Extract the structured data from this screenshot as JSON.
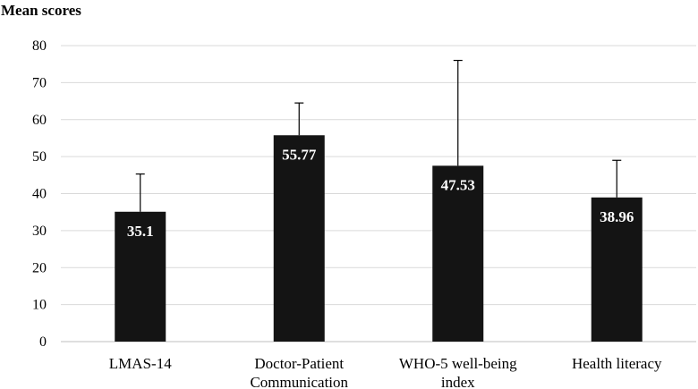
{
  "chart_data": {
    "type": "bar",
    "title": "",
    "ylabel": "Mean scores",
    "xlabel": "",
    "categories": [
      [
        "LMAS-14"
      ],
      [
        "Doctor-Patient",
        "Communication"
      ],
      [
        "WHO-5 well-being",
        "index"
      ],
      [
        "Health literacy"
      ]
    ],
    "values": [
      35.1,
      55.77,
      47.53,
      38.96
    ],
    "data_labels": [
      "35.1",
      "55.77",
      "47.53",
      "38.96"
    ],
    "error_upper": [
      45.3,
      64.5,
      76.0,
      49.0
    ],
    "ylim": [
      0,
      80
    ],
    "yticks": [
      0,
      10,
      20,
      30,
      40,
      50,
      60,
      70,
      80
    ],
    "grid": true,
    "legend": "none",
    "bar_color": "#141414",
    "grid_color": "#d9d9d9",
    "error_bar_color": "#000000"
  }
}
